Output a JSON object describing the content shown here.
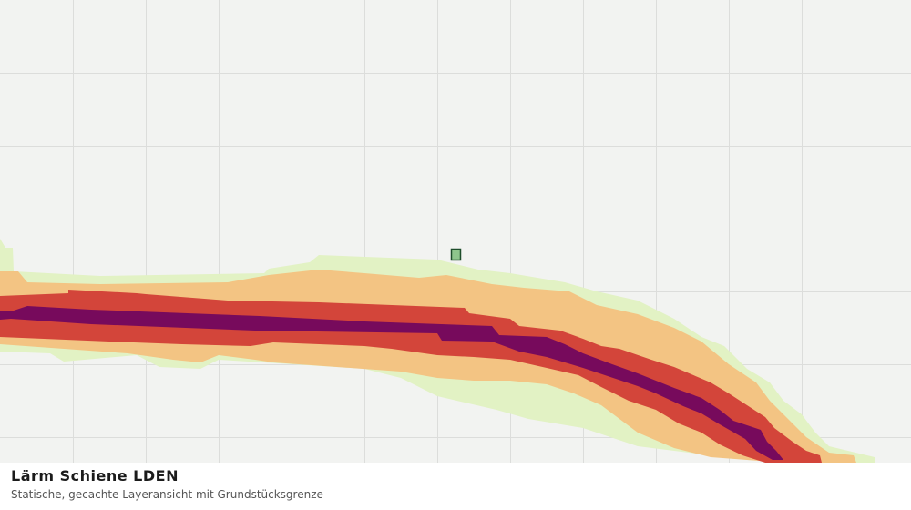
{
  "panel": {
    "title": "Lärm Schiene LDEN",
    "subtitle": "Statische, gecachte Layeransicht mit Grundstücksgrenze"
  }
}
